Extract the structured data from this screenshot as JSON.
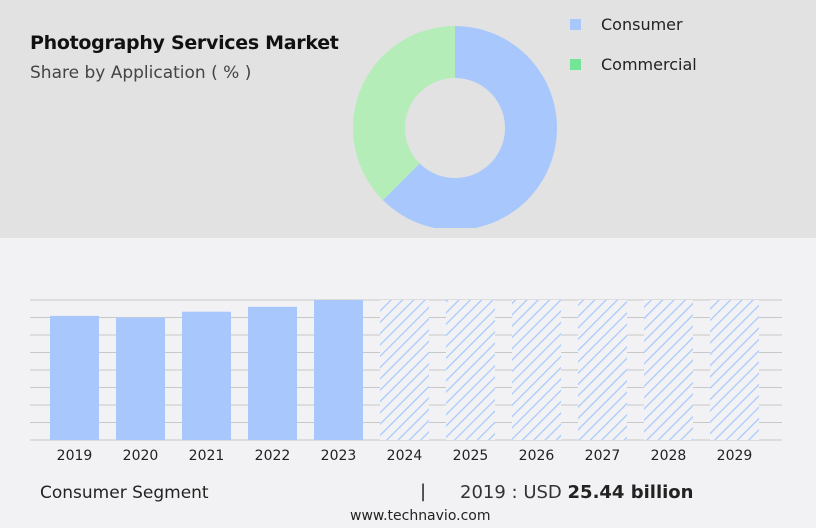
{
  "header": {
    "title": "Photography Services Market",
    "subtitle": "Share by Application ( % )"
  },
  "chart_data": [
    {
      "type": "pie",
      "variant": "donut",
      "title": "Photography Services Market",
      "subtitle": "Share by Application ( % )",
      "categories": [
        "Consumer",
        "Commercial"
      ],
      "values": [
        62.5,
        37.5
      ],
      "colors": [
        "#a8c8fd",
        "#b5edb9"
      ],
      "legend_colors": [
        "#a8c8fd",
        "#72e596"
      ],
      "legend": "top-right"
    },
    {
      "type": "bar",
      "categories": [
        "2019",
        "2020",
        "2021",
        "2022",
        "2023",
        "2024",
        "2025",
        "2026",
        "2027",
        "2028",
        "2029"
      ],
      "values": [
        25.44,
        25.1,
        26.3,
        27.3,
        28.7,
        null,
        null,
        null,
        null,
        null,
        null
      ],
      "forecast_years": [
        "2024",
        "2025",
        "2026",
        "2027",
        "2028",
        "2029"
      ],
      "forecast_style": "hatched",
      "color": "#a8c8fd",
      "grid": true,
      "ylim": [
        0,
        28.7
      ],
      "xlabel": "",
      "ylabel": ""
    }
  ],
  "footer": {
    "segment": "Consumer Segment",
    "separator": "|",
    "year_label": "2019 : USD",
    "value": "25.44 billion",
    "url": "www.technavio.com"
  }
}
